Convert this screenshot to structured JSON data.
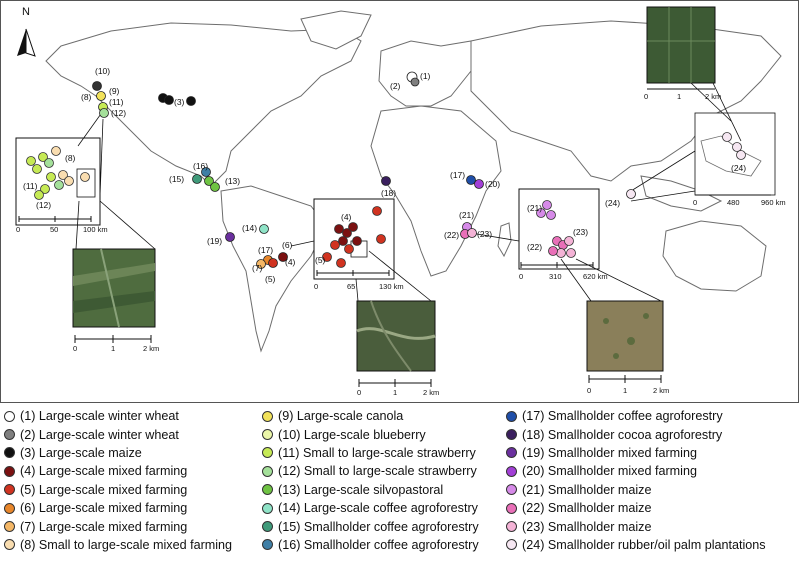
{
  "map": {
    "north_label": "N",
    "inset_na": {
      "ticks": [
        "0",
        "50",
        "100 km"
      ],
      "labels": [
        "(8)",
        "(11)",
        "(12)"
      ]
    },
    "inset_sa": {
      "ticks": [
        "0",
        "65",
        "130 km"
      ],
      "labels": [
        "(4)",
        "(5)"
      ]
    },
    "inset_af": {
      "ticks": [
        "0",
        "310",
        "620 km"
      ],
      "labels": [
        "(21)",
        "(22)",
        "(23)"
      ]
    },
    "inset_asia": {
      "ticks": [
        "0",
        "480",
        "960 km"
      ],
      "labels": [
        "(24)"
      ]
    },
    "photo_na_ticks": [
      "0",
      "1",
      "2 km"
    ],
    "photo_sa_ticks": [
      "0",
      "1",
      "2 km"
    ],
    "photo_af_ticks": [
      "0",
      "1",
      "2 km"
    ],
    "photo_asia_ticks": [
      "0",
      "1",
      "2 km"
    ],
    "site_labels": {
      "s1": "(1)",
      "s2": "(2)",
      "s3": "(3)",
      "s4": "(4)",
      "s5": "(5)",
      "s6": "(6)",
      "s7": "(7)",
      "s8": "(8)",
      "s9": "(9)",
      "s10": "(10)",
      "s11": "(11)",
      "s12": "(12)",
      "s13": "(13)",
      "s14": "(14)",
      "s15": "(15)",
      "s16": "(16)",
      "s17": "(17)",
      "s18": "(18)",
      "s19": "(19)",
      "s20": "(20)",
      "s21": "(21)",
      "s22": "(22)",
      "s23": "(23)",
      "s24": "(24)"
    }
  },
  "legend": [
    {
      "label": "(1) Large-scale winter wheat",
      "color": "#ffffff"
    },
    {
      "label": "(2) Large-scale winter wheat",
      "color": "#7f7f7f"
    },
    {
      "label": "(3) Large-scale maize",
      "color": "#111111"
    },
    {
      "label": "(4) Large-scale mixed farming",
      "color": "#7b1111"
    },
    {
      "label": "(5) Large-scale mixed farming",
      "color": "#d03320"
    },
    {
      "label": "(6) Large-scale mixed farming",
      "color": "#e8862a"
    },
    {
      "label": "(7) Large-scale mixed farming",
      "color": "#f4b766"
    },
    {
      "label": "(8) Small to large-scale mixed farming",
      "color": "#f9ddb0"
    },
    {
      "label": "(9) Large-scale canola",
      "color": "#f2e25a"
    },
    {
      "label": "(10) Large-scale blueberry",
      "color": "#eaf5a8"
    },
    {
      "label": "(11) Small to large-scale strawberry",
      "color": "#c6ea55"
    },
    {
      "label": "(12) Small to large-scale strawberry",
      "color": "#a4e09a"
    },
    {
      "label": "(13) Large-scale silvopastoral",
      "color": "#6fc343"
    },
    {
      "label": "(14) Large-scale coffee agroforestry",
      "color": "#8fe3c7"
    },
    {
      "label": "(15) Smallholder coffee agroforestry",
      "color": "#3f9a7a"
    },
    {
      "label": "(16) Smallholder coffee agroforestry",
      "color": "#3f7fa6"
    },
    {
      "label": "(17) Smallholder coffee agroforestry",
      "color": "#1f4ea8"
    },
    {
      "label": "(18) Smallholder cocoa agroforestry",
      "color": "#3a1f5e"
    },
    {
      "label": "(19) Smallholder mixed farming",
      "color": "#6a2f9e"
    },
    {
      "label": "(20) Smallholder mixed farming",
      "color": "#a23fd6"
    },
    {
      "label": "(21) Smallholder maize",
      "color": "#d68ae8"
    },
    {
      "label": "(22) Smallholder maize",
      "color": "#e96fb8"
    },
    {
      "label": "(23) Smallholder maize",
      "color": "#f4b3d6"
    },
    {
      "label": "(24) Smallholder rubber/oil palm plantations",
      "color": "#f6e7f2"
    }
  ]
}
